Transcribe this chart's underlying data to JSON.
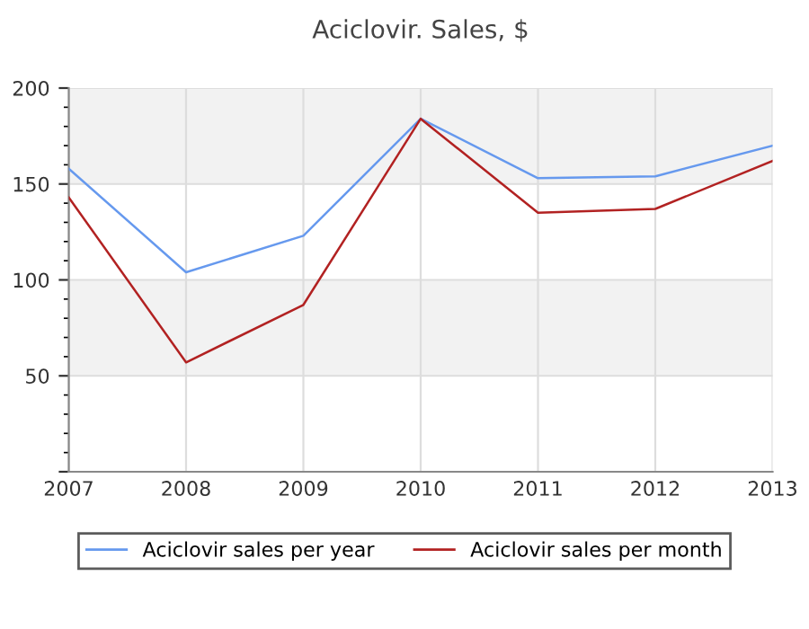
{
  "chart_data": {
    "type": "line",
    "title": "Aciclovir. Sales, $",
    "x": [
      2007,
      2008,
      2009,
      2010,
      2011,
      2012,
      2013
    ],
    "series": [
      {
        "name": "Aciclovir sales per year",
        "color": "#6699ee",
        "values": [
          158,
          104,
          123,
          184,
          153,
          154,
          170
        ]
      },
      {
        "name": "Aciclovir sales per month",
        "color": "#b22222",
        "values": [
          143,
          57,
          87,
          184,
          135,
          137,
          162
        ]
      }
    ],
    "xlim": [
      2007,
      2013
    ],
    "xticks": [
      2007,
      2008,
      2009,
      2010,
      2011,
      2012,
      2013
    ],
    "ylim": [
      0,
      200
    ],
    "yticks": [
      {
        "value": 0,
        "label": null
      },
      50,
      100,
      150,
      200
    ],
    "bands": [
      {
        "axis": "y",
        "from": 50,
        "to": 100,
        "color": "#f2f2f2"
      },
      {
        "axis": "y",
        "from": 150,
        "to": 200,
        "color": "#f2f2f2"
      }
    ],
    "grid": true,
    "legend": "bottom",
    "marker": "none",
    "line_style": "solid"
  }
}
